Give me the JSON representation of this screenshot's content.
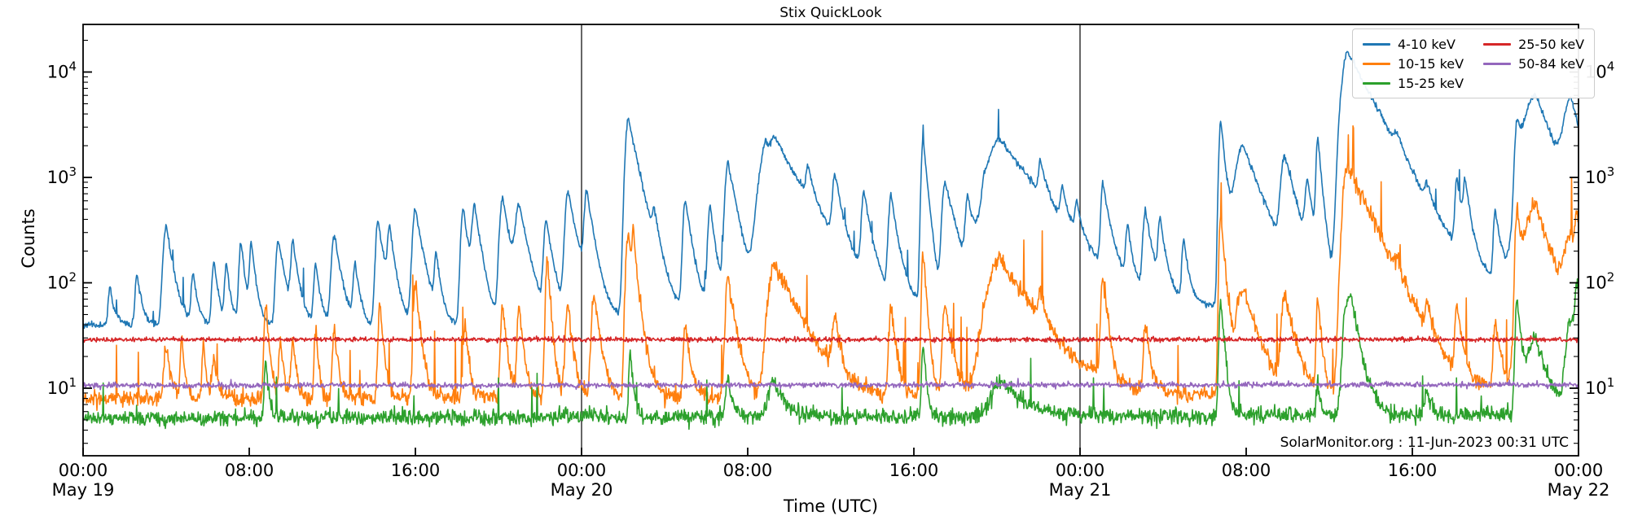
{
  "figure": {
    "title": "Stix QuickLook",
    "xlabel": "Time (UTC)",
    "ylabel": "Counts",
    "annotation": "SolarMonitor.org : 11-Jun-2023 00:31 UTC",
    "background_color": "#ffffff",
    "axis_color": "#000000"
  },
  "chart_data": {
    "type": "line",
    "title": "Stix QuickLook",
    "xlabel": "Time (UTC)",
    "ylabel": "Counts",
    "annotation": "SolarMonitor.org : 11-Jun-2023 00:31 UTC",
    "x_axis": {
      "start": "May 19 00:00 UTC",
      "end": "May 22 00:00 UTC",
      "hours_span": 72,
      "ticks": [
        {
          "t": 0,
          "label": "00:00",
          "sub": "May 19"
        },
        {
          "t": 8,
          "label": "08:00"
        },
        {
          "t": 16,
          "label": "16:00"
        },
        {
          "t": 24,
          "label": "00:00",
          "sub": "May 20"
        },
        {
          "t": 32,
          "label": "08:00"
        },
        {
          "t": 40,
          "label": "16:00"
        },
        {
          "t": 48,
          "label": "00:00",
          "sub": "May 21"
        },
        {
          "t": 56,
          "label": "08:00"
        },
        {
          "t": 64,
          "label": "16:00"
        },
        {
          "t": 72,
          "label": "00:00",
          "sub": "May 22"
        }
      ]
    },
    "y_axis": {
      "scale": "log",
      "lim": [
        2.3,
        28000
      ],
      "major_ticks": [
        {
          "value": 10,
          "base": "10",
          "exp": "1"
        },
        {
          "value": 100,
          "base": "10",
          "exp": "2"
        },
        {
          "value": 1000,
          "base": "10",
          "exp": "3"
        },
        {
          "value": 10000,
          "base": "10",
          "exp": "4"
        }
      ],
      "grid": false
    },
    "day_boundary_hours": [
      24,
      48
    ],
    "legend": {
      "position": "upper right",
      "entries": [
        {
          "label": "4-10 keV",
          "color": "#1f77b4"
        },
        {
          "label": "10-15 keV",
          "color": "#ff7f0e"
        },
        {
          "label": "15-25 keV",
          "color": "#2ca02c"
        },
        {
          "label": "25-50 keV",
          "color": "#d62728"
        },
        {
          "label": "50-84 keV",
          "color": "#9467bd"
        }
      ]
    },
    "sampling": {
      "points": 2600,
      "seed": 11
    },
    "series": [
      {
        "name": "4-10 keV",
        "color": "#1f77b4",
        "baseline": [
          [
            0,
            40
          ],
          [
            20,
            38
          ],
          [
            24,
            46
          ],
          [
            44,
            52
          ],
          [
            48,
            55
          ],
          [
            60,
            60
          ],
          [
            66,
            68
          ],
          [
            72,
            85
          ]
        ],
        "noise_sigma": 0.035,
        "microspikes": {
          "p": 0.006,
          "lo": 1.3,
          "hi": 2.0
        },
        "peaks": [
          [
            1.3,
            90,
            0.08,
            0.2
          ],
          [
            2.6,
            120,
            0.08,
            0.2
          ],
          [
            4.0,
            350,
            0.12,
            0.3
          ],
          [
            5.3,
            120,
            0.08,
            0.2
          ],
          [
            6.3,
            160,
            0.08,
            0.2
          ],
          [
            6.9,
            150,
            0.07,
            0.18
          ],
          [
            7.6,
            240,
            0.08,
            0.2
          ],
          [
            8.1,
            230,
            0.07,
            0.2
          ],
          [
            9.4,
            260,
            0.1,
            0.3
          ],
          [
            10.1,
            230,
            0.08,
            0.25
          ],
          [
            11.2,
            150,
            0.08,
            0.2
          ],
          [
            12.1,
            280,
            0.12,
            0.3
          ],
          [
            13.1,
            150,
            0.08,
            0.2
          ],
          [
            14.2,
            390,
            0.1,
            0.3
          ],
          [
            14.75,
            300,
            0.08,
            0.25
          ],
          [
            16.0,
            500,
            0.12,
            0.35
          ],
          [
            17.0,
            170,
            0.07,
            0.2
          ],
          [
            18.3,
            500,
            0.1,
            0.3
          ],
          [
            18.85,
            480,
            0.1,
            0.3
          ],
          [
            20.2,
            650,
            0.12,
            0.35
          ],
          [
            21.0,
            500,
            0.15,
            0.4
          ],
          [
            22.3,
            380,
            0.1,
            0.3
          ],
          [
            23.35,
            720,
            0.12,
            0.4
          ],
          [
            24.25,
            700,
            0.1,
            0.3
          ],
          [
            26.25,
            3700,
            0.12,
            0.45
          ],
          [
            27.5,
            300,
            0.08,
            0.25
          ],
          [
            29.0,
            600,
            0.1,
            0.3
          ],
          [
            30.2,
            520,
            0.1,
            0.25
          ],
          [
            31.05,
            1400,
            0.12,
            0.4
          ],
          [
            32.9,
            1900,
            0.3,
            0.25
          ],
          [
            33.35,
            2100,
            0.25,
            1.3
          ],
          [
            34.9,
            700,
            0.08,
            0.25
          ],
          [
            36.2,
            850,
            0.1,
            0.3
          ],
          [
            37.6,
            650,
            0.1,
            0.3
          ],
          [
            38.9,
            640,
            0.1,
            0.3
          ],
          [
            40.45,
            2300,
            0.08,
            0.2
          ],
          [
            41.5,
            900,
            0.12,
            0.5
          ],
          [
            42.6,
            560,
            0.1,
            0.3
          ],
          [
            43.4,
            350,
            0.1,
            0.25
          ],
          [
            44.15,
            2300,
            0.5,
            1.6
          ],
          [
            46.1,
            820,
            0.08,
            0.25
          ],
          [
            47.15,
            460,
            0.08,
            0.25
          ],
          [
            47.85,
            380,
            0.08,
            0.2
          ],
          [
            49.1,
            800,
            0.08,
            0.3
          ],
          [
            50.3,
            300,
            0.08,
            0.2
          ],
          [
            51.15,
            460,
            0.1,
            0.3
          ],
          [
            51.85,
            360,
            0.08,
            0.25
          ],
          [
            53.0,
            250,
            0.08,
            0.2
          ],
          [
            54.78,
            3400,
            0.08,
            0.22
          ],
          [
            55.85,
            2000,
            0.3,
            0.8
          ],
          [
            57.85,
            1500,
            0.15,
            0.5
          ],
          [
            58.95,
            720,
            0.1,
            0.3
          ],
          [
            59.45,
            2200,
            0.07,
            0.18
          ],
          [
            60.5,
            900,
            0.1,
            0.2
          ],
          [
            60.88,
            15500,
            0.22,
            1.15
          ],
          [
            63.25,
            740,
            0.12,
            0.35
          ],
          [
            64.7,
            360,
            0.08,
            0.25
          ],
          [
            66.15,
            820,
            0.08,
            0.25
          ],
          [
            66.55,
            700,
            0.08,
            0.25
          ],
          [
            68.0,
            460,
            0.08,
            0.25
          ],
          [
            69.05,
            2800,
            0.1,
            0.25
          ],
          [
            69.95,
            6000,
            0.45,
            0.8
          ],
          [
            71.65,
            5000,
            0.3,
            0.5
          ]
        ]
      },
      {
        "name": "10-15 keV",
        "color": "#ff7f0e",
        "baseline": [
          [
            0,
            8
          ],
          [
            48,
            8.3
          ],
          [
            66,
            9
          ],
          [
            72,
            10
          ]
        ],
        "noise_sigma": 0.09,
        "microspikes": {
          "p": 0.014,
          "lo": 1.6,
          "hi": 4.0
        },
        "peaks": [
          [
            4.0,
            25,
            0.1,
            0.2
          ],
          [
            4.75,
            33,
            0.06,
            0.12
          ],
          [
            5.8,
            25,
            0.06,
            0.12
          ],
          [
            6.3,
            20,
            0.08,
            0.15
          ],
          [
            8.8,
            60,
            0.07,
            0.15
          ],
          [
            9.5,
            30,
            0.06,
            0.12
          ],
          [
            10.1,
            30,
            0.08,
            0.15
          ],
          [
            11.2,
            35,
            0.06,
            0.12
          ],
          [
            12.1,
            35,
            0.08,
            0.15
          ],
          [
            14.3,
            60,
            0.08,
            0.15
          ],
          [
            16.0,
            100,
            0.08,
            0.2
          ],
          [
            18.4,
            40,
            0.08,
            0.15
          ],
          [
            20.2,
            62,
            0.08,
            0.18
          ],
          [
            21.0,
            60,
            0.08,
            0.18
          ],
          [
            22.35,
            170,
            0.07,
            0.15
          ],
          [
            23.35,
            62,
            0.1,
            0.2
          ],
          [
            24.6,
            80,
            0.1,
            0.25
          ],
          [
            26.25,
            290,
            0.1,
            0.3
          ],
          [
            26.5,
            200,
            0.06,
            0.12
          ],
          [
            29.0,
            40,
            0.08,
            0.2
          ],
          [
            31.05,
            120,
            0.1,
            0.3
          ],
          [
            33.3,
            150,
            0.25,
            1.0
          ],
          [
            36.2,
            45,
            0.1,
            0.2
          ],
          [
            38.9,
            60,
            0.08,
            0.2
          ],
          [
            40.45,
            200,
            0.07,
            0.15
          ],
          [
            41.5,
            60,
            0.1,
            0.3
          ],
          [
            44.15,
            165,
            0.5,
            1.4
          ],
          [
            46.1,
            52,
            0.08,
            0.2
          ],
          [
            49.1,
            120,
            0.08,
            0.2
          ],
          [
            51.15,
            40,
            0.08,
            0.2
          ],
          [
            54.78,
            450,
            0.07,
            0.18
          ],
          [
            55.85,
            90,
            0.25,
            0.6
          ],
          [
            57.85,
            80,
            0.12,
            0.4
          ],
          [
            59.45,
            70,
            0.06,
            0.15
          ],
          [
            60.88,
            1300,
            0.18,
            1.0
          ],
          [
            63.25,
            52,
            0.1,
            0.3
          ],
          [
            64.7,
            40,
            0.08,
            0.2
          ],
          [
            66.15,
            60,
            0.08,
            0.2
          ],
          [
            68.0,
            46,
            0.08,
            0.2
          ],
          [
            69.05,
            490,
            0.08,
            0.2
          ],
          [
            69.95,
            540,
            0.4,
            0.7
          ],
          [
            71.65,
            250,
            0.25,
            0.45
          ],
          [
            71.95,
            310,
            0.1,
            0.2
          ]
        ]
      },
      {
        "name": "15-25 keV",
        "color": "#2ca02c",
        "baseline": [
          [
            0,
            5.2
          ],
          [
            72,
            5.6
          ]
        ],
        "noise_sigma": 0.085,
        "microspikes": {
          "p": 0.007,
          "lo": 1.4,
          "hi": 2.6
        },
        "peaks": [
          [
            8.8,
            18,
            0.06,
            0.12
          ],
          [
            26.35,
            23,
            0.06,
            0.12
          ],
          [
            31.05,
            12,
            0.1,
            0.2
          ],
          [
            33.2,
            12,
            0.2,
            0.5
          ],
          [
            40.45,
            28,
            0.06,
            0.12
          ],
          [
            44.2,
            12,
            0.4,
            1.0
          ],
          [
            54.78,
            70,
            0.07,
            0.15
          ],
          [
            59.45,
            12,
            0.06,
            0.12
          ],
          [
            60.85,
            65,
            0.15,
            0.4
          ],
          [
            61.05,
            40,
            0.1,
            0.3
          ],
          [
            64.7,
            10,
            0.08,
            0.2
          ],
          [
            69.05,
            65,
            0.08,
            0.2
          ],
          [
            69.95,
            30,
            0.3,
            0.5
          ],
          [
            71.65,
            45,
            0.2,
            0.4
          ],
          [
            71.95,
            80,
            0.1,
            0.2
          ]
        ]
      },
      {
        "name": "25-50 keV",
        "color": "#d62728",
        "baseline": [
          [
            0,
            29
          ],
          [
            72,
            29
          ]
        ],
        "noise_sigma": 0.025,
        "microspikes": {
          "p": 0,
          "lo": 1,
          "hi": 1
        },
        "peaks": []
      },
      {
        "name": "50-84 keV",
        "color": "#9467bd",
        "baseline": [
          [
            0,
            10.6
          ],
          [
            72,
            10.8
          ]
        ],
        "noise_sigma": 0.028,
        "microspikes": {
          "p": 0.002,
          "lo": 1.05,
          "hi": 1.15
        },
        "peaks": []
      }
    ]
  }
}
